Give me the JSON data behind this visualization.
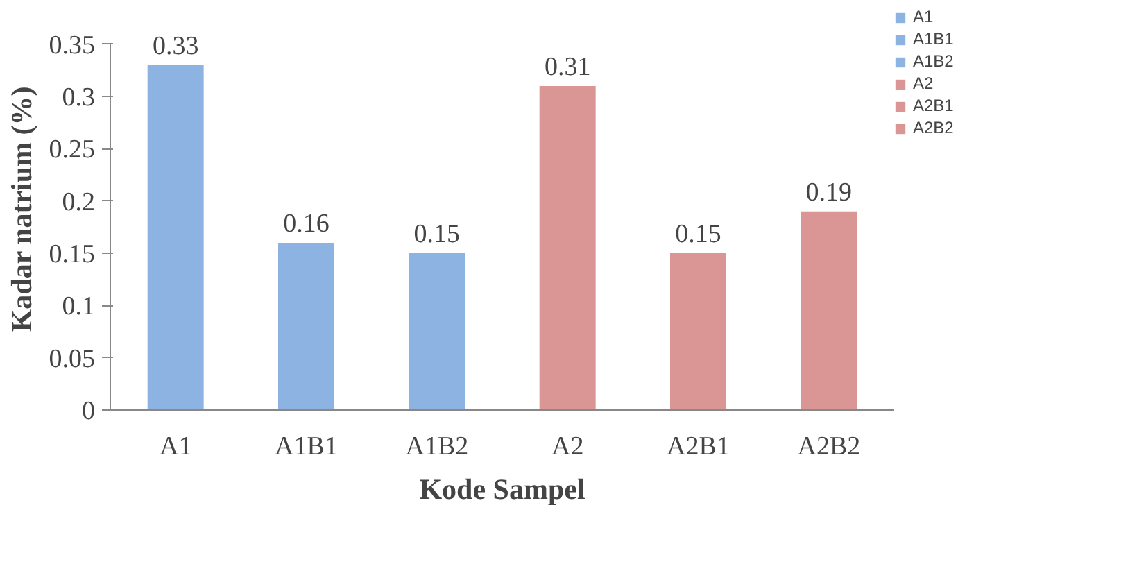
{
  "chart_data": {
    "type": "bar",
    "xlabel": "Kode Sampel",
    "ylabel": "Kadar natrium (%)",
    "categories": [
      "A1",
      "A1B1",
      "A1B2",
      "A2",
      "A2B1",
      "A2B2"
    ],
    "series": [
      {
        "name": "A1",
        "color": "#8db3e2",
        "values": [
          0.33,
          null,
          null,
          null,
          null,
          null
        ]
      },
      {
        "name": "A1B1",
        "color": "#8db3e2",
        "values": [
          null,
          0.16,
          null,
          null,
          null,
          null
        ]
      },
      {
        "name": "A1B2",
        "color": "#8db3e2",
        "values": [
          null,
          null,
          0.15,
          null,
          null,
          null
        ]
      },
      {
        "name": "A2",
        "color": "#d99694",
        "values": [
          null,
          null,
          null,
          0.31,
          null,
          null
        ]
      },
      {
        "name": "A2B1",
        "color": "#d99694",
        "values": [
          null,
          null,
          null,
          null,
          0.15,
          null
        ]
      },
      {
        "name": "A2B2",
        "color": "#d99694",
        "values": [
          null,
          null,
          null,
          null,
          null,
          0.19
        ]
      }
    ],
    "ylim": [
      0,
      0.35
    ],
    "yticks": [
      0,
      0.05,
      0.1,
      0.15,
      0.2,
      0.25,
      0.3,
      0.35
    ],
    "data_labels": true,
    "grid": false,
    "legend": "top right"
  }
}
